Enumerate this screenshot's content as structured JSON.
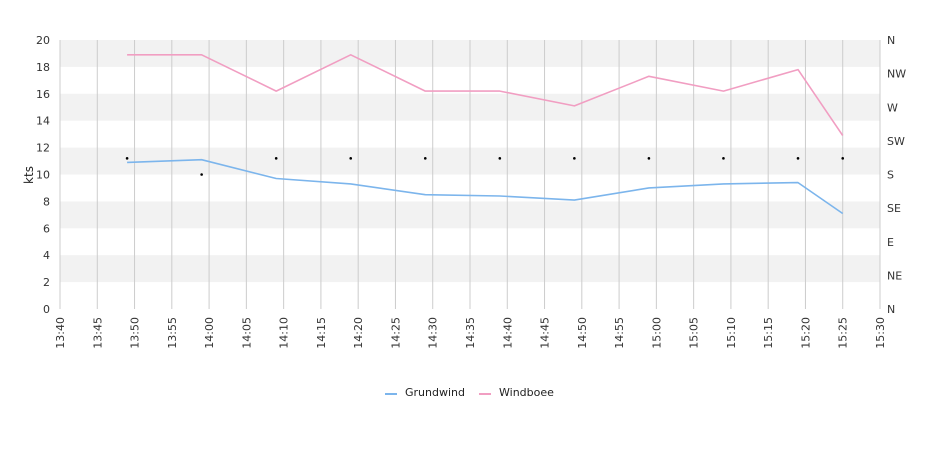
{
  "chart_data": {
    "type": "line",
    "ylabel": "kts",
    "ylim": [
      0,
      20
    ],
    "yticks": [
      0,
      2,
      4,
      6,
      8,
      10,
      12,
      14,
      16,
      18,
      20
    ],
    "xlim": [
      "13:40",
      "15:30"
    ],
    "xticks": [
      "13:40",
      "13:45",
      "13:50",
      "13:55",
      "14:00",
      "14:05",
      "14:10",
      "14:15",
      "14:20",
      "14:25",
      "14:30",
      "14:35",
      "14:40",
      "14:45",
      "14:50",
      "14:55",
      "15:00",
      "15:05",
      "15:10",
      "15:15",
      "15:20",
      "15:25",
      "15:30"
    ],
    "y2_ticks": [
      "N",
      "NW",
      "W",
      "SW",
      "S",
      "SE",
      "E",
      "NE",
      "N"
    ],
    "grid": true,
    "legend_position": "bottom-center",
    "series": [
      {
        "name": "Grundwind",
        "color": "#7cb5ec",
        "points": [
          {
            "x": "13:49",
            "y": 10.9
          },
          {
            "x": "13:59",
            "y": 11.1
          },
          {
            "x": "14:09",
            "y": 9.7
          },
          {
            "x": "14:19",
            "y": 9.3
          },
          {
            "x": "14:29",
            "y": 8.5
          },
          {
            "x": "14:39",
            "y": 8.4
          },
          {
            "x": "14:49",
            "y": 8.1
          },
          {
            "x": "14:59",
            "y": 9.0
          },
          {
            "x": "15:09",
            "y": 9.3
          },
          {
            "x": "15:19",
            "y": 9.4
          },
          {
            "x": "15:25",
            "y": 7.1
          }
        ]
      },
      {
        "name": "Windboee",
        "color": "#f19ec2",
        "points": [
          {
            "x": "13:49",
            "y": 18.9
          },
          {
            "x": "13:59",
            "y": 18.9
          },
          {
            "x": "14:09",
            "y": 16.2
          },
          {
            "x": "14:19",
            "y": 18.9
          },
          {
            "x": "14:29",
            "y": 16.2
          },
          {
            "x": "14:39",
            "y": 16.2
          },
          {
            "x": "14:49",
            "y": 15.1
          },
          {
            "x": "14:59",
            "y": 17.3
          },
          {
            "x": "15:09",
            "y": 16.2
          },
          {
            "x": "15:19",
            "y": 17.8
          },
          {
            "x": "15:25",
            "y": 12.9
          }
        ]
      }
    ],
    "direction_points": [
      {
        "x": "13:49",
        "y": 11.2
      },
      {
        "x": "13:59",
        "y": 10.0
      },
      {
        "x": "14:09",
        "y": 11.2
      },
      {
        "x": "14:19",
        "y": 11.2
      },
      {
        "x": "14:29",
        "y": 11.2
      },
      {
        "x": "14:39",
        "y": 11.2
      },
      {
        "x": "14:49",
        "y": 11.2
      },
      {
        "x": "14:59",
        "y": 11.2
      },
      {
        "x": "15:09",
        "y": 11.2
      },
      {
        "x": "15:19",
        "y": 11.2
      },
      {
        "x": "15:25",
        "y": 11.2
      }
    ],
    "colors": {
      "band": "#f2f2f2",
      "grid": "#cccccc",
      "direction_marker": "#000000"
    }
  }
}
